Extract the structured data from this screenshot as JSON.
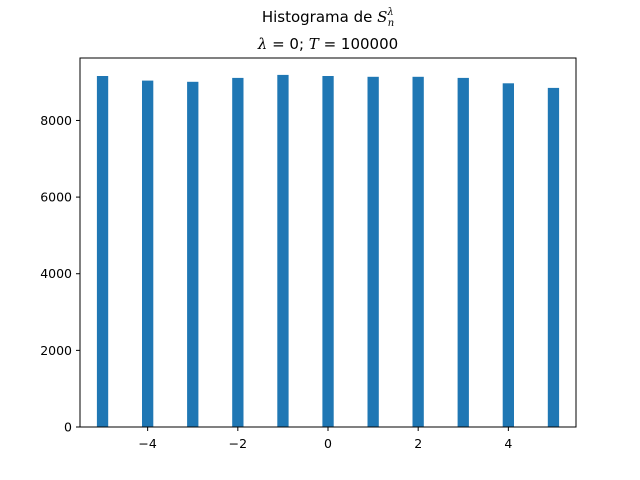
{
  "chart_data": {
    "type": "bar",
    "title_line1_prefix": "Histograma de ",
    "title_line1_symbol": "S",
    "title_line1_sup": "λ",
    "title_line1_sub": "n",
    "title_line2_lambda": "λ",
    "title_line2_eq1": " = 0; ",
    "title_line2_T": "T",
    "title_line2_eq2": " = 100000",
    "xlabel": "",
    "ylabel": "",
    "xlim": [
      -5.5,
      5.5
    ],
    "ylim": [
      0,
      9630
    ],
    "bar_width": 0.25,
    "x": [
      -5,
      -4,
      -3,
      -2,
      -1,
      0,
      1,
      2,
      3,
      4,
      5
    ],
    "values": [
      9160,
      9040,
      9010,
      9110,
      9190,
      9160,
      9140,
      9140,
      9110,
      8970,
      8850
    ],
    "bar_color": "#1f77b4",
    "xticks": [
      -4,
      -2,
      0,
      2,
      4
    ],
    "xtick_labels": [
      "−4",
      "−2",
      "0",
      "2",
      "4"
    ],
    "yticks": [
      0,
      2000,
      4000,
      6000,
      8000
    ],
    "ytick_labels": [
      "0",
      "2000",
      "4000",
      "6000",
      "8000"
    ],
    "grid": false
  }
}
